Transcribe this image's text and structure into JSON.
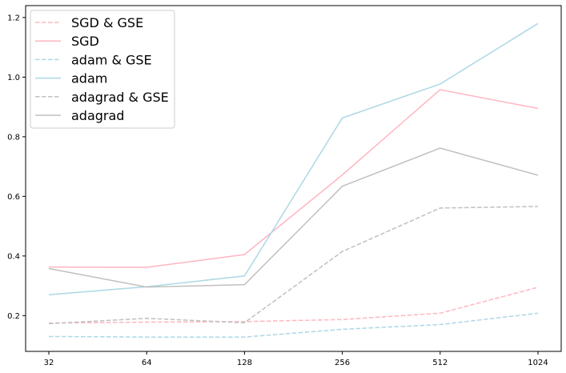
{
  "chart_data": {
    "type": "line",
    "title": "",
    "xlabel": "",
    "ylabel": "",
    "categories": [
      "32",
      "64",
      "128",
      "256",
      "512",
      "1024"
    ],
    "ylim": [
      0.08,
      1.24
    ],
    "yticks": [
      0.2,
      0.4,
      0.6,
      0.8,
      1.0,
      1.2
    ],
    "ytick_labels": [
      "0.2",
      "0.4",
      "0.6",
      "0.8",
      "1.0",
      "1.2"
    ],
    "grid": false,
    "legend_position": "upper-left",
    "series": [
      {
        "name": "SGD & GSE",
        "color": "#ffb6c1",
        "dash": true,
        "values": [
          0.175,
          0.178,
          0.18,
          0.187,
          0.208,
          0.295
        ]
      },
      {
        "name": "SGD",
        "color": "#ffb6c1",
        "dash": false,
        "values": [
          0.363,
          0.362,
          0.405,
          0.672,
          0.958,
          0.895
        ]
      },
      {
        "name": "adam & GSE",
        "color": "#add8e6",
        "dash": true,
        "values": [
          0.13,
          0.128,
          0.128,
          0.154,
          0.17,
          0.208
        ]
      },
      {
        "name": "adam",
        "color": "#add8e6",
        "dash": false,
        "values": [
          0.27,
          0.297,
          0.333,
          0.863,
          0.977,
          1.18
        ]
      },
      {
        "name": "adagrad & GSE",
        "color": "#c0c0c0",
        "dash": true,
        "values": [
          0.173,
          0.191,
          0.176,
          0.415,
          0.561,
          0.566
        ]
      },
      {
        "name": "adagrad",
        "color": "#c0c0c0",
        "dash": false,
        "values": [
          0.358,
          0.296,
          0.304,
          0.634,
          0.762,
          0.671
        ]
      }
    ]
  }
}
